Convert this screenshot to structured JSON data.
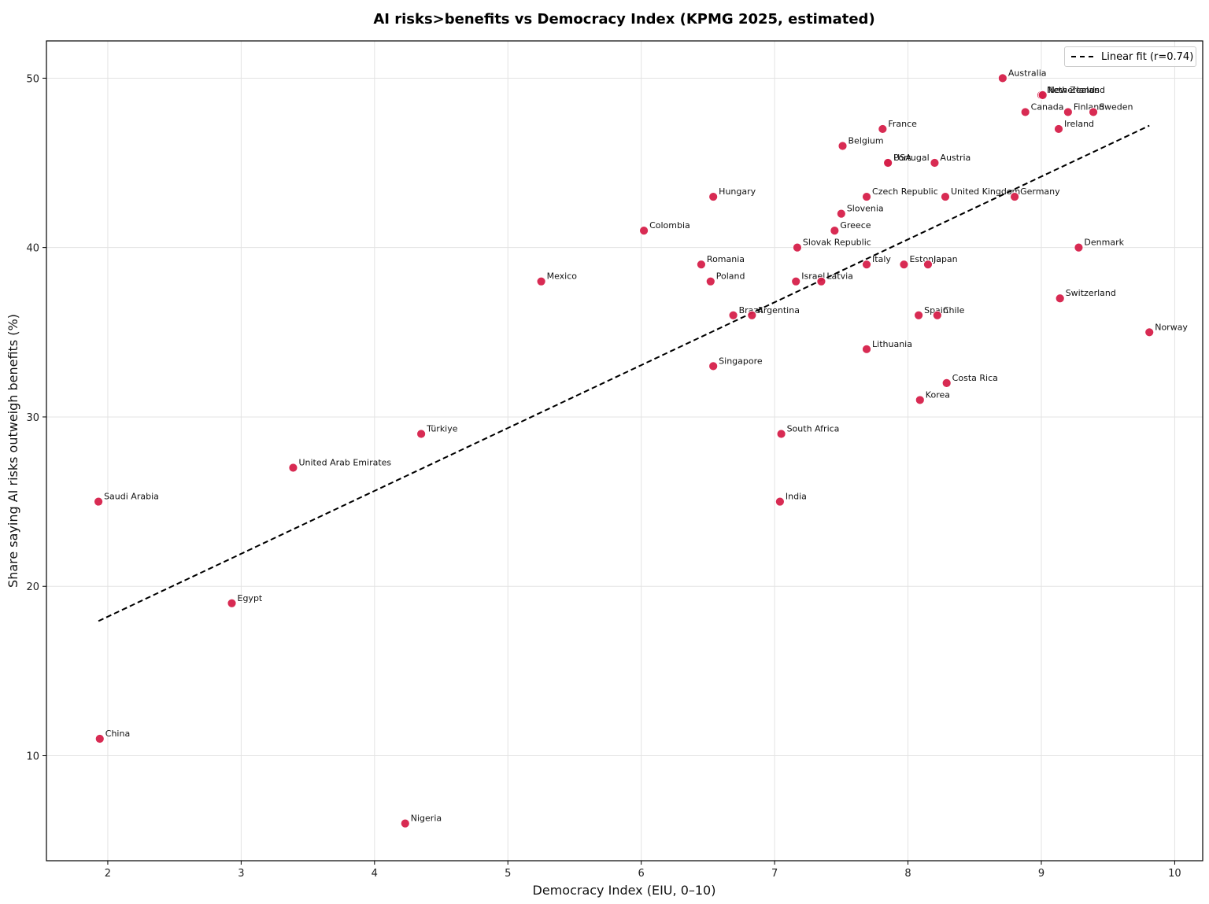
{
  "chart_data": {
    "type": "scatter",
    "title": "AI risks>benefits vs Democracy Index (KPMG 2025, estimated)",
    "xlabel": "Democracy Index (EIU, 0–10)",
    "ylabel": "Share saying AI risks outweigh benefits (%)",
    "xlim": [
      1.54,
      10.21
    ],
    "ylim": [
      3.8,
      52.2
    ],
    "xticks": [
      2,
      3,
      4,
      5,
      6,
      7,
      8,
      9,
      10
    ],
    "yticks": [
      10,
      20,
      30,
      40,
      50
    ],
    "grid": true,
    "legend_position": "upper right",
    "marker_color": "#d6204a",
    "points": [
      {
        "label": "Australia",
        "x": 8.71,
        "y": 50
      },
      {
        "label": "Netherlands",
        "x": 9.0,
        "y": 49
      },
      {
        "label": "New Zealand",
        "x": 9.01,
        "y": 49
      },
      {
        "label": "Canada",
        "x": 8.88,
        "y": 48
      },
      {
        "label": "Finland",
        "x": 9.2,
        "y": 48
      },
      {
        "label": "Sweden",
        "x": 9.39,
        "y": 48
      },
      {
        "label": "Ireland",
        "x": 9.13,
        "y": 47
      },
      {
        "label": "France",
        "x": 7.81,
        "y": 47
      },
      {
        "label": "Belgium",
        "x": 7.51,
        "y": 46
      },
      {
        "label": "USA",
        "x": 7.85,
        "y": 45
      },
      {
        "label": "Portugal",
        "x": 7.85,
        "y": 45
      },
      {
        "label": "Austria",
        "x": 8.2,
        "y": 45
      },
      {
        "label": "Hungary",
        "x": 6.54,
        "y": 43
      },
      {
        "label": "Czech Republic",
        "x": 7.69,
        "y": 43
      },
      {
        "label": "United Kingdom",
        "x": 8.28,
        "y": 43
      },
      {
        "label": "Germany",
        "x": 8.8,
        "y": 43
      },
      {
        "label": "Slovenia",
        "x": 7.5,
        "y": 42
      },
      {
        "label": "Colombia",
        "x": 6.02,
        "y": 41
      },
      {
        "label": "Greece",
        "x": 7.45,
        "y": 41
      },
      {
        "label": "Slovak Republic",
        "x": 7.17,
        "y": 40
      },
      {
        "label": "Denmark",
        "x": 9.28,
        "y": 40
      },
      {
        "label": "Romania",
        "x": 6.45,
        "y": 39
      },
      {
        "label": "Italy",
        "x": 7.69,
        "y": 39
      },
      {
        "label": "Estonia",
        "x": 7.97,
        "y": 39
      },
      {
        "label": "Japan",
        "x": 8.15,
        "y": 39
      },
      {
        "label": "Mexico",
        "x": 5.25,
        "y": 38
      },
      {
        "label": "Poland",
        "x": 6.52,
        "y": 38
      },
      {
        "label": "Israel",
        "x": 7.16,
        "y": 38
      },
      {
        "label": "Latvia",
        "x": 7.35,
        "y": 38
      },
      {
        "label": "Switzerland",
        "x": 9.14,
        "y": 37
      },
      {
        "label": "Brazil",
        "x": 6.69,
        "y": 36
      },
      {
        "label": "Argentina",
        "x": 6.83,
        "y": 36
      },
      {
        "label": "Spain",
        "x": 8.08,
        "y": 36
      },
      {
        "label": "Chile",
        "x": 8.22,
        "y": 36
      },
      {
        "label": "Norway",
        "x": 9.81,
        "y": 35
      },
      {
        "label": "Lithuania",
        "x": 7.69,
        "y": 34
      },
      {
        "label": "Singapore",
        "x": 6.54,
        "y": 33
      },
      {
        "label": "Costa Rica",
        "x": 8.29,
        "y": 32
      },
      {
        "label": "Korea",
        "x": 8.09,
        "y": 31
      },
      {
        "label": "Türkiye",
        "x": 4.35,
        "y": 29
      },
      {
        "label": "South Africa",
        "x": 7.05,
        "y": 29
      },
      {
        "label": "United Arab Emirates",
        "x": 3.39,
        "y": 27
      },
      {
        "label": "Saudi Arabia",
        "x": 1.93,
        "y": 25
      },
      {
        "label": "India",
        "x": 7.04,
        "y": 25
      },
      {
        "label": "Egypt",
        "x": 2.93,
        "y": 19
      },
      {
        "label": "China",
        "x": 1.94,
        "y": 11
      },
      {
        "label": "Nigeria",
        "x": 4.23,
        "y": 6
      }
    ],
    "fit_line": {
      "label": "Linear fit (r=0.74)",
      "x": [
        1.93,
        9.81
      ],
      "y": [
        17.95,
        47.2
      ],
      "style": "dashed",
      "color": "#000000"
    },
    "legend": [
      "Linear fit (r=0.74)"
    ]
  }
}
